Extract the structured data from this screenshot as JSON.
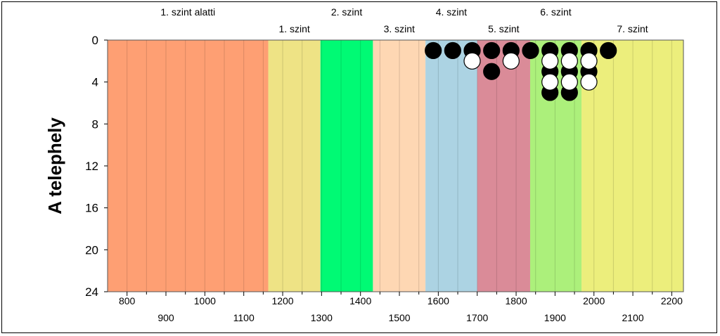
{
  "chart_data": {
    "type": "scatter",
    "ylabel": "A telephely",
    "xlim": [
      750,
      2230
    ],
    "ylim": [
      0,
      24
    ],
    "y_inverted": true,
    "y_ticks": [
      "0",
      "4",
      "8",
      "12",
      "16",
      "20",
      "24"
    ],
    "x_ticks_row1": [
      "800",
      "1000",
      "1200",
      "1400",
      "1600",
      "1800",
      "2000",
      "2200"
    ],
    "x_ticks_row2": [
      "900",
      "1100",
      "1300",
      "1500",
      "1700",
      "1900",
      "2100"
    ],
    "grid": "vertical",
    "zones": [
      {
        "label": "1. szint alatti",
        "from": 750,
        "to": 1163,
        "color": "#fe9f73",
        "label_row": "top"
      },
      {
        "label": "1. szint",
        "from": 1163,
        "to": 1297,
        "color": "#eee385",
        "label_row": "bottom"
      },
      {
        "label": "2. szint",
        "from": 1297,
        "to": 1432,
        "color": "#00fa74",
        "label_row": "top"
      },
      {
        "label": "3. szint",
        "from": 1432,
        "to": 1567,
        "color": "#fed7b3",
        "label_row": "bottom"
      },
      {
        "label": "4. szint",
        "from": 1567,
        "to": 1700,
        "color": "#acd3e3",
        "label_row": "top"
      },
      {
        "label": "5. szint",
        "from": 1700,
        "to": 1836,
        "color": "#da8b98",
        "label_row": "bottom"
      },
      {
        "label": "6. szint",
        "from": 1836,
        "to": 1968,
        "color": "#acf07b",
        "label_row": "top"
      },
      {
        "label": "7. szint",
        "from": 1968,
        "to": 2230,
        "color": "#ecee7c",
        "label_row": "bottom"
      }
    ],
    "series": [
      {
        "marker": "filled",
        "color": "#000000",
        "points": [
          {
            "x": 1587,
            "y": 1
          },
          {
            "x": 1637,
            "y": 1
          },
          {
            "x": 1687,
            "y": 1
          },
          {
            "x": 1737,
            "y": 1
          },
          {
            "x": 1737,
            "y": 3
          },
          {
            "x": 1787,
            "y": 1
          },
          {
            "x": 1837,
            "y": 1
          },
          {
            "x": 1887,
            "y": 1
          },
          {
            "x": 1887,
            "y": 3
          },
          {
            "x": 1887,
            "y": 5
          },
          {
            "x": 1937,
            "y": 1
          },
          {
            "x": 1937,
            "y": 3
          },
          {
            "x": 1937,
            "y": 5
          },
          {
            "x": 1987,
            "y": 1
          },
          {
            "x": 1987,
            "y": 3
          },
          {
            "x": 2037,
            "y": 1
          }
        ]
      },
      {
        "marker": "open",
        "color": "#ffffff",
        "points": [
          {
            "x": 1687,
            "y": 2
          },
          {
            "x": 1787,
            "y": 2
          },
          {
            "x": 1887,
            "y": 2
          },
          {
            "x": 1887,
            "y": 4
          },
          {
            "x": 1937,
            "y": 2
          },
          {
            "x": 1937,
            "y": 4
          },
          {
            "x": 1987,
            "y": 2
          },
          {
            "x": 1987,
            "y": 4
          }
        ]
      }
    ]
  }
}
